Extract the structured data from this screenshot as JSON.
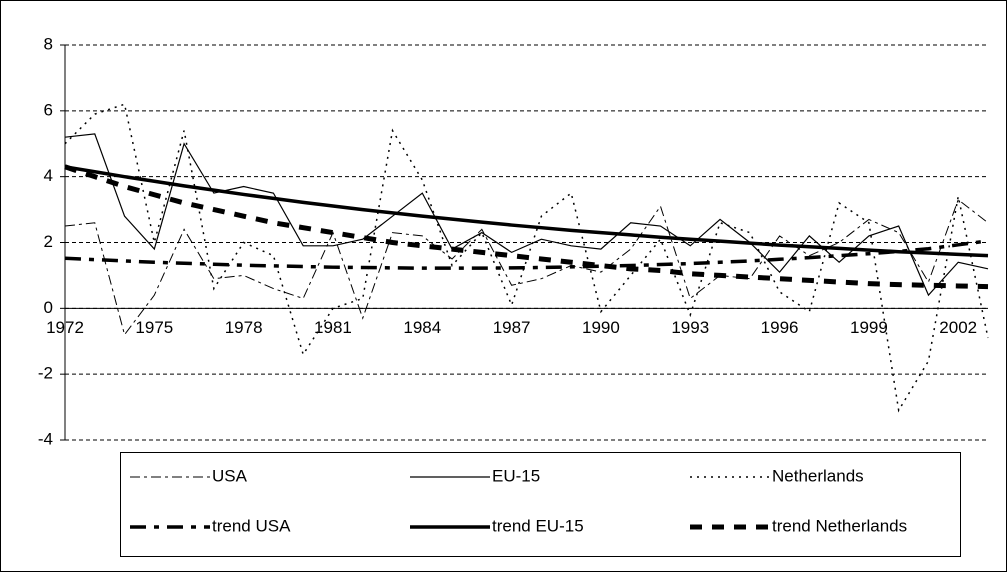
{
  "chart_data": {
    "type": "line",
    "categories": [
      "1972",
      null,
      null,
      "1975",
      null,
      null,
      "1978",
      null,
      null,
      "1981",
      null,
      null,
      "1984",
      null,
      null,
      "1987",
      null,
      null,
      "1990",
      null,
      null,
      "1993",
      null,
      null,
      "1996",
      null,
      null,
      "1999",
      null,
      null,
      "2002",
      null
    ],
    "ylim": [
      -4,
      8
    ],
    "yticks": [
      -4,
      -2,
      0,
      2,
      4,
      6,
      8
    ],
    "grid": true,
    "series": [
      {
        "name": "USA",
        "color": "#000000",
        "values": [
          2.5,
          2.6,
          -0.8,
          0.4,
          2.4,
          0.9,
          1.0,
          0.6,
          0.3,
          2.3,
          -0.3,
          2.3,
          2.2,
          1.5,
          2.4,
          0.7,
          0.9,
          1.3,
          1.1,
          1.8,
          3.1,
          0.3,
          1.0,
          0.9,
          2.2,
          1.6,
          2.0,
          2.7,
          2.3,
          0.8,
          3.3,
          2.6
        ]
      },
      {
        "name": "EU-15",
        "color": "#000000",
        "values": [
          5.2,
          5.3,
          2.8,
          1.8,
          5.0,
          3.5,
          3.7,
          3.5,
          1.9,
          1.9,
          2.1,
          2.8,
          3.5,
          1.8,
          2.3,
          1.7,
          2.1,
          1.9,
          1.8,
          2.6,
          2.5,
          1.9,
          2.7,
          2.0,
          1.1,
          2.2,
          1.4,
          2.2,
          2.5,
          0.4,
          1.4,
          1.2
        ]
      },
      {
        "name": "Netherlands",
        "color": "#000000",
        "values": [
          5.0,
          5.9,
          6.2,
          2.0,
          5.4,
          0.6,
          2.0,
          1.6,
          -1.4,
          0.0,
          0.3,
          5.4,
          3.9,
          1.3,
          2.3,
          0.1,
          2.8,
          3.5,
          -0.1,
          1.0,
          2.1,
          -0.2,
          2.6,
          2.3,
          0.5,
          -0.1,
          3.2,
          2.6,
          -3.1,
          -1.6,
          3.4,
          -0.9
        ]
      },
      {
        "name": "trend USA",
        "color": "#000000",
        "values": [
          1.52,
          1.48,
          1.44,
          1.4,
          1.37,
          1.34,
          1.31,
          1.29,
          1.27,
          1.25,
          1.24,
          1.23,
          1.22,
          1.22,
          1.22,
          1.23,
          1.24,
          1.26,
          1.28,
          1.3,
          1.33,
          1.36,
          1.4,
          1.44,
          1.49,
          1.54,
          1.6,
          1.66,
          1.73,
          1.81,
          1.93,
          2.05
        ]
      },
      {
        "name": "trend EU-15",
        "color": "#000000",
        "values": [
          4.3,
          4.15,
          4.0,
          3.86,
          3.72,
          3.59,
          3.46,
          3.34,
          3.22,
          3.11,
          3.0,
          2.9,
          2.8,
          2.71,
          2.62,
          2.53,
          2.45,
          2.37,
          2.3,
          2.23,
          2.16,
          2.1,
          2.04,
          1.98,
          1.92,
          1.87,
          1.82,
          1.77,
          1.72,
          1.68,
          1.64,
          1.6
        ]
      },
      {
        "name": "trend Netherlands",
        "color": "#000000",
        "values": [
          4.3,
          4.0,
          3.7,
          3.45,
          3.2,
          3.0,
          2.8,
          2.6,
          2.45,
          2.3,
          2.15,
          2.0,
          1.9,
          1.8,
          1.7,
          1.6,
          1.5,
          1.4,
          1.3,
          1.2,
          1.15,
          1.05,
          1.0,
          0.95,
          0.9,
          0.85,
          0.8,
          0.75,
          0.72,
          0.7,
          0.68,
          0.66
        ]
      }
    ]
  }
}
